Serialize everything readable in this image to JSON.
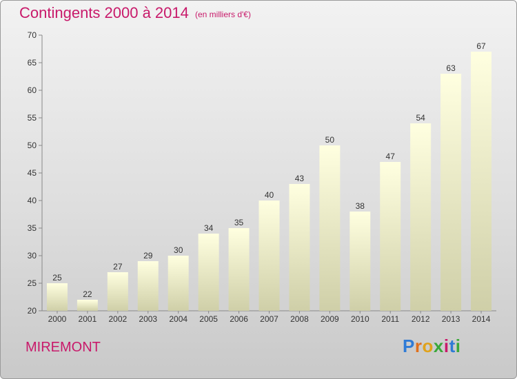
{
  "header": {
    "title": "Contingents 2000 à 2014",
    "subtitle": "(en milliers d'€)"
  },
  "footer": {
    "city": "MIREMONT",
    "logo_letters": [
      "P",
      "r",
      "o",
      "x",
      "i",
      "t",
      "i"
    ],
    "logo_colors": [
      "#2f7bd6",
      "#e06f1b",
      "#e0a21b",
      "#3aa83a",
      "#c8196a",
      "#2f7bd6",
      "#3aa83a"
    ]
  },
  "chart_data": {
    "type": "bar",
    "categories": [
      "2000",
      "2001",
      "2002",
      "2003",
      "2004",
      "2005",
      "2006",
      "2007",
      "2008",
      "2009",
      "2010",
      "2011",
      "2012",
      "2013",
      "2014"
    ],
    "values": [
      25,
      22,
      27,
      29,
      30,
      34,
      35,
      40,
      43,
      50,
      38,
      47,
      54,
      63,
      67
    ],
    "title": "Contingents 2000 à 2014",
    "subtitle": "(en milliers d'€)",
    "ylim": [
      20,
      70
    ],
    "yticks": [
      20,
      25,
      30,
      35,
      40,
      45,
      50,
      55,
      60,
      65,
      70
    ],
    "grid": false,
    "colors": {
      "bar_top": "#ffffe0",
      "bar_bottom": "#cfcfa8",
      "text": "#333333",
      "axis": "#888888"
    }
  }
}
